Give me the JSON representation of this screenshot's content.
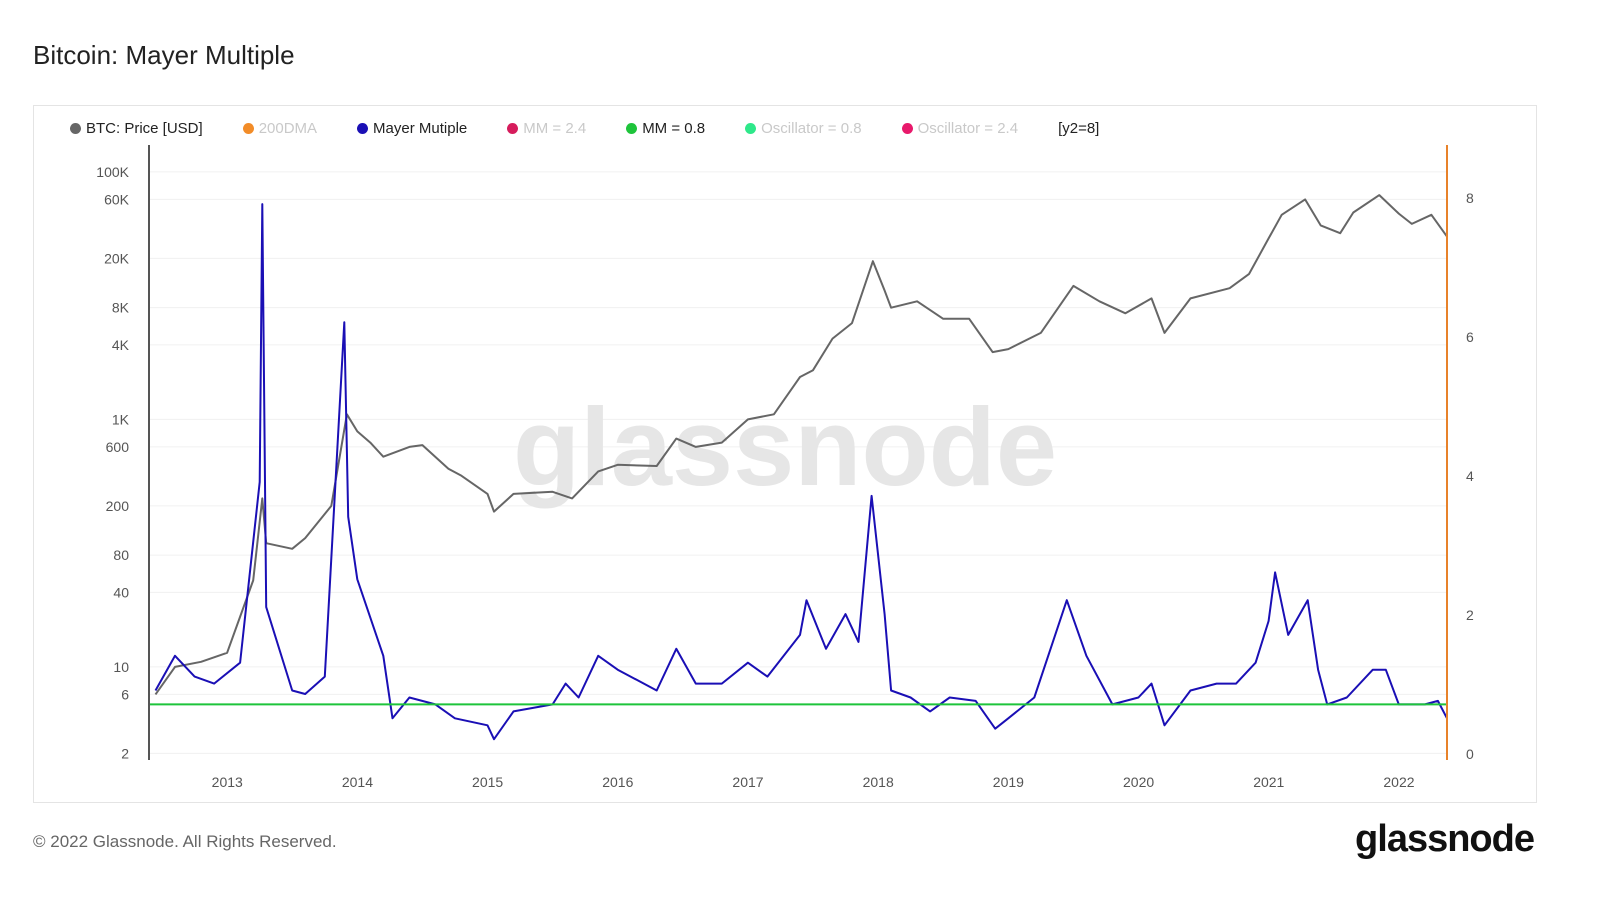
{
  "title": "Bitcoin: Mayer Multiple",
  "legend": [
    {
      "label": "BTC: Price [USD]",
      "color": "#666666",
      "active": true
    },
    {
      "label": "200DMA",
      "color": "#f28c28",
      "active": false
    },
    {
      "label": "Mayer Mutiple",
      "color": "#1a0fb5",
      "active": true
    },
    {
      "label": "MM = 2.4",
      "color": "#d61c5c",
      "active": false
    },
    {
      "label": "MM = 0.8",
      "color": "#1ec43b",
      "active": true
    },
    {
      "label": "Oscillator = 0.8",
      "color": "#2ee88a",
      "active": false
    },
    {
      "label": "Oscillator = 2.4",
      "color": "#e8196b",
      "active": false
    }
  ],
  "y2_note": "[y2=8]",
  "watermark": "glassnode",
  "footer": "© 2022 Glassnode. All Rights Reserved.",
  "logo": "glassnode",
  "chart_data": {
    "type": "line",
    "title": "Bitcoin: Mayer Multiple",
    "x_ticks": [
      "2013",
      "2014",
      "2015",
      "2016",
      "2017",
      "2018",
      "2019",
      "2020",
      "2021",
      "2022"
    ],
    "xlim": [
      2012.4,
      2022.37
    ],
    "y_left": {
      "scale": "log",
      "ticks": [
        "100K",
        "60K",
        "20K",
        "8K",
        "4K",
        "1K",
        "600",
        "200",
        "80",
        "40",
        "10",
        "6",
        "2"
      ],
      "tick_values": [
        100000,
        60000,
        20000,
        8000,
        4000,
        1000,
        600,
        200,
        80,
        40,
        10,
        6,
        2
      ],
      "range": [
        1.77,
        165000
      ]
    },
    "y_right": {
      "scale": "linear",
      "ticks": [
        "8",
        "6",
        "4",
        "2",
        "0"
      ],
      "tick_values": [
        8,
        6,
        4,
        2,
        0
      ],
      "range": [
        0,
        8.85
      ]
    },
    "grid": true,
    "legend_position": "top",
    "series": [
      {
        "name": "BTC: Price [USD]",
        "axis": "left",
        "color": "#666666",
        "x": [
          2012.45,
          2012.6,
          2012.8,
          2013.0,
          2013.2,
          2013.27,
          2013.3,
          2013.5,
          2013.6,
          2013.8,
          2013.92,
          2014.0,
          2014.1,
          2014.2,
          2014.4,
          2014.5,
          2014.7,
          2014.8,
          2015.0,
          2015.05,
          2015.2,
          2015.5,
          2015.65,
          2015.85,
          2016.0,
          2016.3,
          2016.45,
          2016.6,
          2016.8,
          2017.0,
          2017.2,
          2017.4,
          2017.5,
          2017.65,
          2017.8,
          2017.96,
          2018.05,
          2018.1,
          2018.3,
          2018.5,
          2018.7,
          2018.88,
          2019.0,
          2019.25,
          2019.5,
          2019.7,
          2019.9,
          2020.1,
          2020.2,
          2020.4,
          2020.7,
          2020.85,
          2021.0,
          2021.1,
          2021.28,
          2021.4,
          2021.55,
          2021.65,
          2021.85,
          2022.0,
          2022.1,
          2022.25,
          2022.37
        ],
        "y": [
          6,
          10,
          11,
          13,
          50,
          230,
          100,
          90,
          110,
          200,
          1100,
          800,
          650,
          500,
          600,
          620,
          400,
          350,
          250,
          180,
          250,
          260,
          230,
          380,
          430,
          420,
          700,
          600,
          650,
          1000,
          1100,
          2200,
          2500,
          4500,
          6000,
          19000,
          11000,
          8000,
          9000,
          6500,
          6500,
          3500,
          3700,
          5000,
          12000,
          9000,
          7200,
          9500,
          5000,
          9500,
          11500,
          15000,
          29000,
          45000,
          60000,
          37000,
          32000,
          47000,
          65000,
          46000,
          38000,
          45000,
          30000
        ]
      },
      {
        "name": "Mayer Mutiple",
        "axis": "right",
        "color": "#1a0fb5",
        "x": [
          2012.45,
          2012.6,
          2012.75,
          2012.9,
          2013.1,
          2013.25,
          2013.27,
          2013.3,
          2013.5,
          2013.6,
          2013.75,
          2013.9,
          2013.93,
          2014.0,
          2014.2,
          2014.27,
          2014.4,
          2014.6,
          2014.75,
          2015.0,
          2015.05,
          2015.2,
          2015.5,
          2015.6,
          2015.7,
          2015.85,
          2016.0,
          2016.3,
          2016.45,
          2016.6,
          2016.8,
          2017.0,
          2017.15,
          2017.4,
          2017.45,
          2017.6,
          2017.75,
          2017.85,
          2017.95,
          2018.05,
          2018.1,
          2018.25,
          2018.4,
          2018.55,
          2018.75,
          2018.9,
          2019.0,
          2019.2,
          2019.45,
          2019.6,
          2019.8,
          2020.0,
          2020.1,
          2020.2,
          2020.4,
          2020.6,
          2020.75,
          2020.9,
          2021.0,
          2021.05,
          2021.15,
          2021.3,
          2021.38,
          2021.45,
          2021.6,
          2021.8,
          2021.9,
          2022.0,
          2022.2,
          2022.3,
          2022.37
        ],
        "y": [
          1.0,
          1.5,
          1.2,
          1.1,
          1.4,
          4.0,
          8.0,
          2.2,
          1.0,
          0.95,
          1.2,
          6.3,
          3.5,
          2.6,
          1.5,
          0.6,
          0.9,
          0.8,
          0.6,
          0.5,
          0.3,
          0.7,
          0.8,
          1.1,
          0.9,
          1.5,
          1.3,
          1.0,
          1.6,
          1.1,
          1.1,
          1.4,
          1.2,
          1.8,
          2.3,
          1.6,
          2.1,
          1.7,
          3.8,
          2.1,
          1.0,
          0.9,
          0.7,
          0.9,
          0.85,
          0.45,
          0.6,
          0.9,
          2.3,
          1.5,
          0.8,
          0.9,
          1.1,
          0.5,
          1.0,
          1.1,
          1.1,
          1.4,
          2.0,
          2.7,
          1.8,
          2.3,
          1.3,
          0.8,
          0.9,
          1.3,
          1.3,
          0.8,
          0.8,
          0.85,
          0.6
        ]
      },
      {
        "name": "MM = 0.8",
        "axis": "right",
        "color": "#1ec43b",
        "constant": 0.8
      }
    ]
  }
}
